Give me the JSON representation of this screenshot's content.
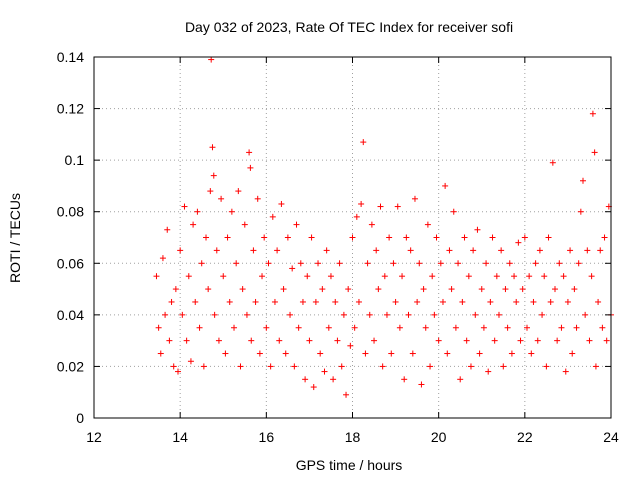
{
  "chart_data": {
    "type": "scatter",
    "title": "Day 032 of 2023, Rate Of TEC Index for receiver sofi",
    "xlabel": "GPS time / hours",
    "ylabel": "ROTI / TECUs",
    "xlim": [
      12,
      24
    ],
    "ylim": [
      0,
      0.14
    ],
    "x_ticks": [
      12,
      14,
      16,
      18,
      20,
      22,
      24
    ],
    "x_tick_labels": [
      "12",
      "14",
      "16",
      "18",
      "20",
      "22",
      "24"
    ],
    "y_ticks": [
      0,
      0.02,
      0.04,
      0.06,
      0.08,
      0.1,
      0.12,
      0.14
    ],
    "y_tick_labels": [
      "0",
      "0.02",
      "0.04",
      "0.06",
      "0.08",
      "0.1",
      "0.12",
      "0.14"
    ],
    "grid": true,
    "marker": "+",
    "marker_color": "#ff0000",
    "series": [
      {
        "points": [
          [
            13.45,
            0.055
          ],
          [
            13.5,
            0.035
          ],
          [
            13.55,
            0.025
          ],
          [
            13.6,
            0.062
          ],
          [
            13.65,
            0.04
          ],
          [
            13.7,
            0.073
          ],
          [
            13.75,
            0.03
          ],
          [
            13.8,
            0.045
          ],
          [
            13.85,
            0.02
          ],
          [
            13.9,
            0.05
          ],
          [
            13.95,
            0.018
          ],
          [
            14.0,
            0.065
          ],
          [
            14.05,
            0.04
          ],
          [
            14.1,
            0.082
          ],
          [
            14.15,
            0.03
          ],
          [
            14.2,
            0.055
          ],
          [
            14.25,
            0.022
          ],
          [
            14.3,
            0.075
          ],
          [
            14.35,
            0.045
          ],
          [
            14.4,
            0.08
          ],
          [
            14.45,
            0.035
          ],
          [
            14.5,
            0.06
          ],
          [
            14.55,
            0.02
          ],
          [
            14.6,
            0.07
          ],
          [
            14.65,
            0.05
          ],
          [
            14.7,
            0.088
          ],
          [
            14.72,
            0.139
          ],
          [
            14.75,
            0.105
          ],
          [
            14.78,
            0.094
          ],
          [
            14.8,
            0.04
          ],
          [
            14.85,
            0.065
          ],
          [
            14.9,
            0.03
          ],
          [
            14.95,
            0.085
          ],
          [
            15.0,
            0.055
          ],
          [
            15.05,
            0.025
          ],
          [
            15.1,
            0.07
          ],
          [
            15.15,
            0.045
          ],
          [
            15.2,
            0.08
          ],
          [
            15.25,
            0.035
          ],
          [
            15.3,
            0.06
          ],
          [
            15.35,
            0.088
          ],
          [
            15.4,
            0.02
          ],
          [
            15.45,
            0.05
          ],
          [
            15.5,
            0.075
          ],
          [
            15.55,
            0.04
          ],
          [
            15.6,
            0.103
          ],
          [
            15.63,
            0.097
          ],
          [
            15.65,
            0.03
          ],
          [
            15.7,
            0.065
          ],
          [
            15.75,
            0.045
          ],
          [
            15.8,
            0.085
          ],
          [
            15.85,
            0.025
          ],
          [
            15.9,
            0.055
          ],
          [
            15.95,
            0.07
          ],
          [
            16.0,
            0.035
          ],
          [
            16.05,
            0.06
          ],
          [
            16.1,
            0.02
          ],
          [
            16.15,
            0.078
          ],
          [
            16.2,
            0.045
          ],
          [
            16.25,
            0.065
          ],
          [
            16.3,
            0.03
          ],
          [
            16.35,
            0.083
          ],
          [
            16.4,
            0.05
          ],
          [
            16.45,
            0.025
          ],
          [
            16.5,
            0.07
          ],
          [
            16.55,
            0.04
          ],
          [
            16.6,
            0.058
          ],
          [
            16.65,
            0.02
          ],
          [
            16.7,
            0.075
          ],
          [
            16.75,
            0.035
          ],
          [
            16.8,
            0.06
          ],
          [
            16.85,
            0.045
          ],
          [
            16.9,
            0.015
          ],
          [
            16.95,
            0.055
          ],
          [
            17.0,
            0.03
          ],
          [
            17.05,
            0.07
          ],
          [
            17.1,
            0.012
          ],
          [
            17.15,
            0.045
          ],
          [
            17.2,
            0.06
          ],
          [
            17.25,
            0.025
          ],
          [
            17.3,
            0.05
          ],
          [
            17.35,
            0.018
          ],
          [
            17.4,
            0.065
          ],
          [
            17.45,
            0.035
          ],
          [
            17.5,
            0.055
          ],
          [
            17.55,
            0.015
          ],
          [
            17.6,
            0.045
          ],
          [
            17.65,
            0.03
          ],
          [
            17.7,
            0.06
          ],
          [
            17.75,
            0.02
          ],
          [
            17.8,
            0.04
          ],
          [
            17.85,
            0.009
          ],
          [
            17.9,
            0.05
          ],
          [
            17.95,
            0.028
          ],
          [
            18.0,
            0.07
          ],
          [
            18.05,
            0.035
          ],
          [
            18.1,
            0.078
          ],
          [
            18.15,
            0.045
          ],
          [
            18.2,
            0.083
          ],
          [
            18.25,
            0.107
          ],
          [
            18.3,
            0.025
          ],
          [
            18.35,
            0.06
          ],
          [
            18.4,
            0.04
          ],
          [
            18.45,
            0.075
          ],
          [
            18.5,
            0.03
          ],
          [
            18.55,
            0.065
          ],
          [
            18.6,
            0.05
          ],
          [
            18.65,
            0.082
          ],
          [
            18.7,
            0.02
          ],
          [
            18.75,
            0.055
          ],
          [
            18.8,
            0.04
          ],
          [
            18.85,
            0.07
          ],
          [
            18.9,
            0.025
          ],
          [
            18.95,
            0.06
          ],
          [
            19.0,
            0.045
          ],
          [
            19.05,
            0.082
          ],
          [
            19.1,
            0.035
          ],
          [
            19.15,
            0.055
          ],
          [
            19.2,
            0.015
          ],
          [
            19.25,
            0.07
          ],
          [
            19.3,
            0.04
          ],
          [
            19.35,
            0.065
          ],
          [
            19.4,
            0.025
          ],
          [
            19.45,
            0.085
          ],
          [
            19.5,
            0.045
          ],
          [
            19.55,
            0.06
          ],
          [
            19.6,
            0.013
          ],
          [
            19.65,
            0.05
          ],
          [
            19.7,
            0.035
          ],
          [
            19.75,
            0.075
          ],
          [
            19.8,
            0.02
          ],
          [
            19.85,
            0.055
          ],
          [
            19.9,
            0.04
          ],
          [
            19.95,
            0.07
          ],
          [
            20.0,
            0.03
          ],
          [
            20.05,
            0.06
          ],
          [
            20.1,
            0.045
          ],
          [
            20.15,
            0.09
          ],
          [
            20.2,
            0.025
          ],
          [
            20.25,
            0.065
          ],
          [
            20.3,
            0.05
          ],
          [
            20.35,
            0.08
          ],
          [
            20.4,
            0.035
          ],
          [
            20.45,
            0.06
          ],
          [
            20.5,
            0.015
          ],
          [
            20.55,
            0.045
          ],
          [
            20.6,
            0.07
          ],
          [
            20.65,
            0.03
          ],
          [
            20.7,
            0.055
          ],
          [
            20.75,
            0.02
          ],
          [
            20.8,
            0.065
          ],
          [
            20.85,
            0.04
          ],
          [
            20.9,
            0.073
          ],
          [
            20.95,
            0.025
          ],
          [
            21.0,
            0.05
          ],
          [
            21.05,
            0.035
          ],
          [
            21.1,
            0.06
          ],
          [
            21.15,
            0.018
          ],
          [
            21.2,
            0.045
          ],
          [
            21.25,
            0.07
          ],
          [
            21.3,
            0.03
          ],
          [
            21.35,
            0.055
          ],
          [
            21.4,
            0.04
          ],
          [
            21.45,
            0.065
          ],
          [
            21.5,
            0.02
          ],
          [
            21.55,
            0.05
          ],
          [
            21.6,
            0.035
          ],
          [
            21.65,
            0.06
          ],
          [
            21.7,
            0.025
          ],
          [
            21.75,
            0.055
          ],
          [
            21.8,
            0.045
          ],
          [
            21.85,
            0.068
          ],
          [
            21.9,
            0.03
          ],
          [
            21.95,
            0.05
          ],
          [
            22.0,
            0.07
          ],
          [
            22.05,
            0.035
          ],
          [
            22.1,
            0.055
          ],
          [
            22.15,
            0.025
          ],
          [
            22.2,
            0.045
          ],
          [
            22.25,
            0.06
          ],
          [
            22.3,
            0.03
          ],
          [
            22.35,
            0.065
          ],
          [
            22.4,
            0.04
          ],
          [
            22.45,
            0.055
          ],
          [
            22.5,
            0.02
          ],
          [
            22.55,
            0.07
          ],
          [
            22.6,
            0.045
          ],
          [
            22.65,
            0.099
          ],
          [
            22.7,
            0.05
          ],
          [
            22.75,
            0.03
          ],
          [
            22.8,
            0.06
          ],
          [
            22.85,
            0.035
          ],
          [
            22.9,
            0.055
          ],
          [
            22.95,
            0.018
          ],
          [
            23.0,
            0.045
          ],
          [
            23.05,
            0.065
          ],
          [
            23.1,
            0.025
          ],
          [
            23.15,
            0.05
          ],
          [
            23.2,
            0.035
          ],
          [
            23.25,
            0.06
          ],
          [
            23.3,
            0.08
          ],
          [
            23.35,
            0.092
          ],
          [
            23.4,
            0.04
          ],
          [
            23.45,
            0.065
          ],
          [
            23.5,
            0.03
          ],
          [
            23.55,
            0.055
          ],
          [
            23.58,
            0.118
          ],
          [
            23.62,
            0.103
          ],
          [
            23.65,
            0.02
          ],
          [
            23.7,
            0.045
          ],
          [
            23.75,
            0.065
          ],
          [
            23.8,
            0.035
          ],
          [
            23.85,
            0.07
          ],
          [
            23.9,
            0.03
          ],
          [
            23.95,
            0.082
          ],
          [
            24.0,
            0.04
          ]
        ]
      }
    ]
  }
}
